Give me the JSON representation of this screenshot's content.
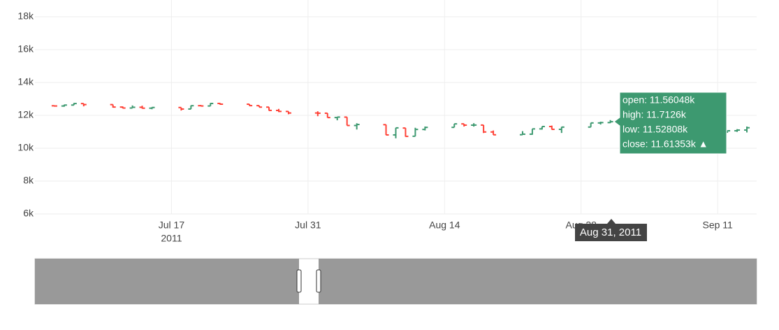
{
  "chart_data": {
    "type": "ohlc",
    "x": [
      "2011-07-05",
      "2011-07-06",
      "2011-07-07",
      "2011-07-08",
      "2011-07-11",
      "2011-07-12",
      "2011-07-13",
      "2011-07-14",
      "2011-07-15",
      "2011-07-18",
      "2011-07-19",
      "2011-07-20",
      "2011-07-21",
      "2011-07-22",
      "2011-07-25",
      "2011-07-26",
      "2011-07-27",
      "2011-07-28",
      "2011-07-29",
      "2011-08-01",
      "2011-08-02",
      "2011-08-03",
      "2011-08-04",
      "2011-08-05",
      "2011-08-08",
      "2011-08-09",
      "2011-08-10",
      "2011-08-11",
      "2011-08-12",
      "2011-08-15",
      "2011-08-16",
      "2011-08-17",
      "2011-08-18",
      "2011-08-19",
      "2011-08-22",
      "2011-08-23",
      "2011-08-24",
      "2011-08-25",
      "2011-08-26",
      "2011-08-29",
      "2011-08-30",
      "2011-08-31",
      "2011-09-01",
      "2011-09-02",
      "2011-09-06",
      "2011-09-07",
      "2011-09-08",
      "2011-09-09",
      "2011-09-12",
      "2011-09-13",
      "2011-09-14"
    ],
    "open": [
      12582,
      12569,
      12626,
      12717,
      12655,
      12505,
      12447,
      12492,
      12437,
      12477,
      12386,
      12588,
      12571,
      12725,
      12679,
      12591,
      12501,
      12300,
      12238,
      12144,
      12131,
      11867,
      11894,
      11383,
      11433,
      10810,
      11228,
      10729,
      11143,
      11270,
      11481,
      11405,
      11409,
      10989,
      10822,
      10855,
      11177,
      11320,
      11149,
      11287,
      11539,
      11560.48,
      11612,
      11492,
      11238,
      11140,
      11414,
      11293,
      10991,
      11062,
      11106
    ],
    "high": [
      12602,
      12650,
      12753,
      12717,
      12655,
      12544,
      12603,
      12587,
      12500,
      12477,
      12604,
      12636,
      12753,
      12745,
      12679,
      12597,
      12501,
      12393,
      12238,
      12247,
      12131,
      11904,
      11894,
      11520,
      11433,
      11244,
      11228,
      11245,
      11321,
      11483,
      11481,
      11524,
      11409,
      11080,
      11039,
      11177,
      11326,
      11377,
      11300,
      11545,
      11613,
      11712.6,
      11717,
      11492,
      11238,
      11415,
      11464,
      11293,
      11081,
      11162,
      11320
    ],
    "low": [
      12530,
      12524,
      12626,
      12548,
      12468,
      12426,
      12445,
      12409,
      12373,
      12294,
      12386,
      12561,
      12567,
      12638,
      12571,
      12496,
      12284,
      12199,
      12069,
      11949,
      11859,
      11700,
      11383,
      11139,
      10800,
      10604,
      10699,
      10729,
      11082,
      11270,
      11319,
      11315,
      10924,
      10812,
      10822,
      10820,
      11136,
      11131,
      10929,
      11287,
      11442,
      11528.08,
      11482,
      11213,
      10935,
      11140,
      11284,
      10964,
      10933,
      10993,
      10959
    ],
    "close": [
      12570,
      12626,
      12719,
      12657,
      12505,
      12446,
      12491,
      12437,
      12479,
      12385,
      12587,
      12571,
      12724,
      12681,
      12592,
      12501,
      12302,
      12240,
      12143,
      12132,
      11866,
      11896,
      11383,
      11444,
      10809,
      11239,
      10720,
      11143,
      11269,
      11482,
      11406,
      11410,
      10990,
      10817,
      10854,
      11176,
      11320,
      11150,
      11285,
      11540,
      11560,
      11613.53,
      11494,
      11240,
      11139,
      11414,
      11295,
      10992,
      11062,
      11105,
      11246
    ],
    "increasing_color": "#3D9970",
    "decreasing_color": "#FF4136",
    "xlim": [
      "2011-07-03",
      "2011-09-15"
    ],
    "xticks": [
      {
        "value": "2011-07-17",
        "label": "Jul 17"
      },
      {
        "value": "2011-07-31",
        "label": "Jul 31"
      },
      {
        "value": "2011-08-14",
        "label": "Aug 14"
      },
      {
        "value": "2011-08-28",
        "label": "Aug 28"
      },
      {
        "value": "2011-09-11",
        "label": "Sep 11"
      }
    ],
    "x_year_label": "2011",
    "ylim": [
      6000,
      18000
    ],
    "yticks": [
      {
        "value": 6000,
        "label": "6k"
      },
      {
        "value": 8000,
        "label": "8k"
      },
      {
        "value": 10000,
        "label": "10k"
      },
      {
        "value": 12000,
        "label": "12k"
      },
      {
        "value": 14000,
        "label": "14k"
      },
      {
        "value": 16000,
        "label": "16k"
      },
      {
        "value": 18000,
        "label": "18k"
      }
    ],
    "grid": true,
    "hover": {
      "date": "Aug 31, 2011",
      "lines": [
        "open: 11.56048k",
        "high: 11.7126k",
        "low: 11.52808k",
        "close: 11.61353k  ▲"
      ]
    }
  }
}
